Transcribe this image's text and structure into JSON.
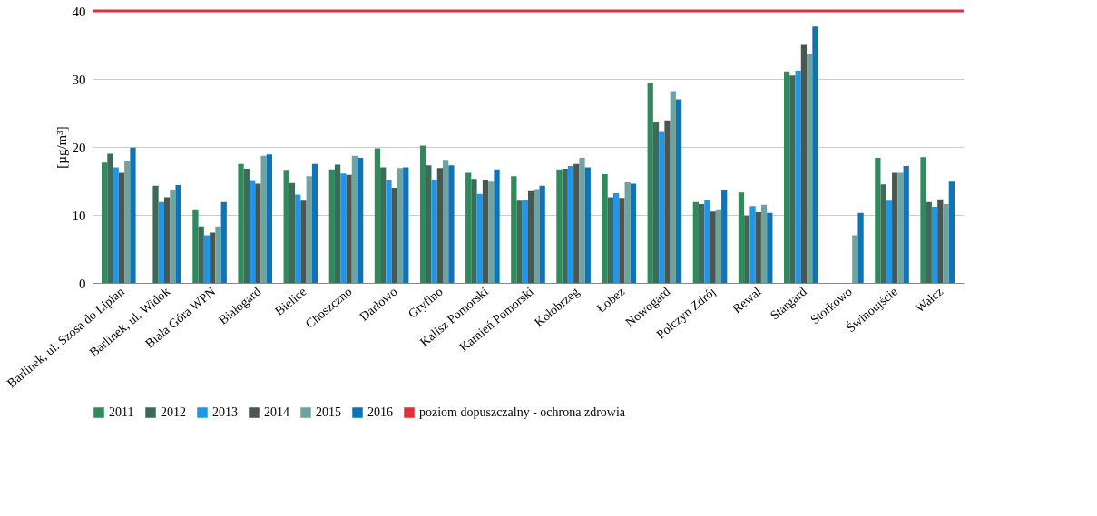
{
  "chart_data": {
    "type": "bar",
    "ylabel": "[µg/m³]",
    "categories": [
      "Barlinek, ul. Szosa do Lipian",
      "Barlinek, ul. Widok",
      "Biała Góra WPN",
      "Białogard",
      "Bielice",
      "Choszczno",
      "Darłowo",
      "Gryfino",
      "Kalisz Pomorski",
      "Kamień Pomorski",
      "Kołobrzeg",
      "Łobez",
      "Nowogard",
      "Połczyn Zdrój",
      "Rewal",
      "Stargard",
      "Storkowo",
      "Świnoujście",
      "Wałcz"
    ],
    "series": [
      {
        "name": "2011",
        "color": "#2f8a5c",
        "values": [
          17.7,
          null,
          10.7,
          17.5,
          16.5,
          16.7,
          19.8,
          20.2,
          16.2,
          15.7,
          16.7,
          16.0,
          29.4,
          11.9,
          13.3,
          31.1,
          null,
          18.4,
          18.5
        ]
      },
      {
        "name": "2012",
        "color": "#3d6b5a",
        "values": [
          19.0,
          14.3,
          8.3,
          16.8,
          14.7,
          17.4,
          17.0,
          17.3,
          15.3,
          12.1,
          16.8,
          12.6,
          23.7,
          11.6,
          9.9,
          30.5,
          null,
          14.5,
          11.9
        ]
      },
      {
        "name": "2013",
        "color": "#2196e8",
        "values": [
          17.0,
          11.9,
          7.0,
          15.0,
          13.0,
          16.1,
          15.1,
          15.2,
          13.1,
          12.2,
          17.2,
          13.2,
          22.2,
          12.2,
          11.3,
          31.2,
          null,
          12.1,
          11.2
        ]
      },
      {
        "name": "2014",
        "color": "#4a5650",
        "values": [
          16.2,
          12.6,
          7.4,
          14.6,
          12.1,
          15.9,
          14.0,
          16.9,
          15.2,
          13.5,
          17.5,
          12.5,
          23.9,
          10.5,
          10.4,
          35.0,
          null,
          16.2,
          12.3
        ]
      },
      {
        "name": "2015",
        "color": "#6fa3a0",
        "values": [
          17.9,
          13.7,
          8.3,
          18.7,
          15.7,
          18.7,
          16.9,
          18.1,
          14.9,
          13.8,
          18.4,
          14.8,
          28.2,
          10.7,
          11.5,
          33.6,
          7.0,
          16.2,
          11.6
        ]
      },
      {
        "name": "2016",
        "color": "#0f73b8",
        "values": [
          19.9,
          14.4,
          11.9,
          18.9,
          17.5,
          18.4,
          17.0,
          17.3,
          16.7,
          14.3,
          17.0,
          14.6,
          27.0,
          13.7,
          10.3,
          37.7,
          10.3,
          17.2,
          14.9
        ]
      }
    ],
    "ref_lines": [
      {
        "axis": "y",
        "value": 40,
        "label": "poziom dopuszczalny - ochrona zdrowia",
        "color": "#e0303c"
      }
    ],
    "ylim": [
      0,
      40
    ],
    "yticks": [
      0,
      10,
      20,
      30,
      40
    ],
    "grid": "y",
    "legend": "bottom"
  }
}
